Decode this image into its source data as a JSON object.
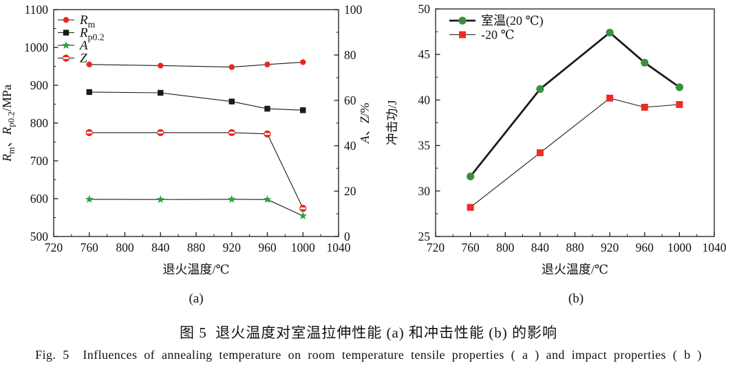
{
  "figure": {
    "caption_zh": "图 5  退火温度对室温拉伸性能 (a) 和冲击性能 (b) 的影响",
    "caption_en": "Fig. 5  Influences of annealing temperature on room temperature tensile properties ( a ) and impact properties ( b )"
  },
  "chart_data": [
    {
      "id": "a",
      "type": "line",
      "sublabel": "(a)",
      "xlabel": "退火温度/℃",
      "ylabel_left": "Rm、Rp0.2/MPa",
      "ylabel_right": "A、Z/%",
      "xlim": [
        720,
        1040
      ],
      "xticks": [
        720,
        760,
        800,
        840,
        880,
        920,
        960,
        1000,
        1040
      ],
      "x_minor_step": 20,
      "axes": {
        "left": {
          "lim": [
            500,
            1100
          ],
          "ticks": [
            500,
            600,
            700,
            800,
            900,
            1000,
            1100
          ],
          "minor_step": 50,
          "title_segments": [
            {
              "text": "R",
              "italic": true
            },
            {
              "text": "m",
              "sub": true
            },
            {
              "text": "、"
            },
            {
              "text": "R",
              "italic": true
            },
            {
              "text": "p0.2",
              "sub": true
            },
            {
              "text": "/MPa"
            }
          ]
        },
        "right": {
          "lim": [
            0,
            100
          ],
          "ticks": [
            0,
            20,
            40,
            60,
            80,
            100
          ],
          "minor_step": 10,
          "title_segments": [
            {
              "text": "A",
              "italic": true
            },
            {
              "text": "、"
            },
            {
              "text": "Z",
              "italic": true
            },
            {
              "text": "/%"
            }
          ]
        }
      },
      "x": [
        760,
        840,
        920,
        960,
        1000
      ],
      "series": [
        {
          "key": "rm",
          "name": "Rm",
          "legend_segments": [
            {
              "text": "R",
              "italic": true
            },
            {
              "text": "m",
              "sub": true
            }
          ],
          "axis": "left",
          "marker": "circle",
          "marker_size": 4.2,
          "color": "#e8281e",
          "line_width": 1.1,
          "values": [
            955,
            952,
            948,
            955,
            961
          ]
        },
        {
          "key": "rp02",
          "name": "Rp0.2",
          "legend_segments": [
            {
              "text": "R",
              "italic": true
            },
            {
              "text": "p0.2",
              "sub": true
            }
          ],
          "axis": "left",
          "marker": "square",
          "marker_size": 4.2,
          "color": "#1a1a1a",
          "line_width": 1.1,
          "values": [
            882,
            880,
            857,
            838,
            834
          ]
        },
        {
          "key": "a",
          "name": "A",
          "legend_segments": [
            {
              "text": "A",
              "italic": true
            }
          ],
          "axis": "right",
          "marker": "star",
          "marker_size": 6.2,
          "color": "#2f9e3c",
          "line_width": 1.1,
          "values": [
            16.4,
            16.3,
            16.4,
            16.3,
            9.1
          ]
        },
        {
          "key": "z",
          "name": "Z",
          "legend_segments": [
            {
              "text": "Z",
              "italic": true
            }
          ],
          "axis": "right",
          "marker": "circle-half",
          "marker_size": 4.6,
          "color": "#e8281e",
          "line_width": 1.1,
          "values": [
            45.8,
            45.8,
            45.8,
            45.2,
            12.4
          ]
        }
      ]
    },
    {
      "id": "b",
      "type": "line",
      "sublabel": "(b)",
      "xlabel": "退火温度/℃",
      "ylabel_left": "冲击功/J",
      "xlim": [
        720,
        1040
      ],
      "xticks": [
        720,
        760,
        800,
        840,
        880,
        920,
        960,
        1000,
        1040
      ],
      "x_minor_step": 20,
      "axes": {
        "left": {
          "lim": [
            25,
            50
          ],
          "ticks": [
            25,
            30,
            35,
            40,
            45,
            50
          ],
          "minor_step": 2.5,
          "title_segments": [
            {
              "text": "冲击功/J"
            }
          ]
        }
      },
      "x": [
        760,
        840,
        920,
        960,
        1000
      ],
      "series": [
        {
          "key": "room-temp",
          "name": "室温(20 ℃)",
          "legend_segments": [
            {
              "text": "室温(20 ℃)"
            }
          ],
          "axis": "left",
          "marker": "circle",
          "marker_size": 5.6,
          "color": "#35923f",
          "line_width": 2.8,
          "values": [
            31.6,
            41.2,
            47.4,
            44.1,
            41.4
          ]
        },
        {
          "key": "minus-20",
          "name": "-20 ℃",
          "legend_segments": [
            {
              "text": "-20 ℃"
            }
          ],
          "axis": "left",
          "marker": "square",
          "marker_size": 5,
          "color": "#ee2c24",
          "line_width": 1.1,
          "values": [
            28.2,
            34.2,
            40.2,
            39.2,
            39.5
          ]
        }
      ]
    }
  ]
}
